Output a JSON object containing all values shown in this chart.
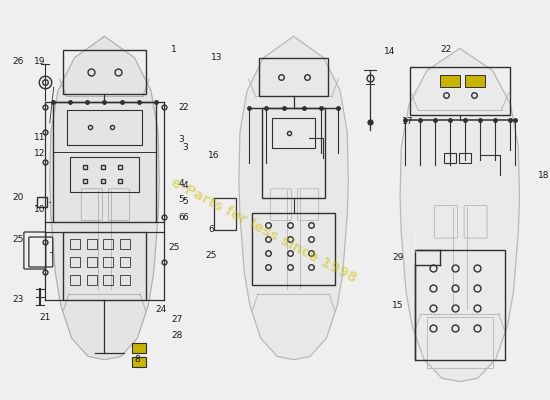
{
  "bg_color": "#efefef",
  "car_color": "#d0d0d0",
  "car_inner_color": "#e8e8e8",
  "diagram_color": "#303030",
  "label_color": "#1a1a1a",
  "yellow_color": "#c8b400",
  "watermark_color": "#ccbb00",
  "watermark_alpha": 0.45,
  "watermark_text": "e-Parts for less since 1998",
  "watermark_rotation": -28
}
